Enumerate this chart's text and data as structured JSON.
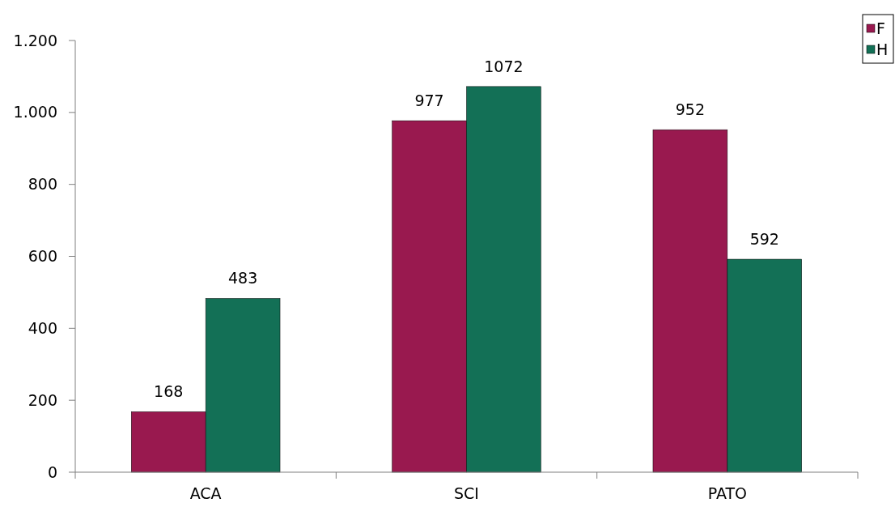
{
  "chart_data": {
    "type": "bar",
    "categories": [
      "ACA",
      "SCI",
      "PATO"
    ],
    "series": [
      {
        "name": "F",
        "color": "#99194f",
        "values": [
          168,
          977,
          952
        ]
      },
      {
        "name": "H",
        "color": "#137056",
        "values": [
          483,
          1072,
          592
        ]
      }
    ],
    "ylim": [
      0,
      1200
    ],
    "yticks": [
      0,
      200,
      400,
      600,
      800,
      {
        "value": 1000,
        "label": "1.000"
      },
      {
        "value": 1200,
        "label": "1.200"
      }
    ],
    "data_labels": true,
    "grid": false,
    "legend": "top right"
  }
}
